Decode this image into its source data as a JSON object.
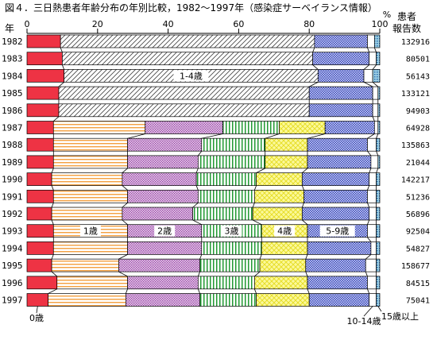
{
  "chart_data": {
    "type": "bar",
    "stacked": true,
    "orientation": "horizontal",
    "percent": true,
    "title": "図４．三日熱患者年齢分布の年別比較，1982～1997年（感染症サーベイランス情報）",
    "y_axis_label": "年",
    "x_axis_unit": "%",
    "right_header_line1": "患者",
    "right_header_line2": "報告数",
    "xlim": [
      0,
      100
    ],
    "x_ticks": [
      "0",
      "20",
      "40",
      "60",
      "80",
      "100"
    ],
    "categories": [
      "1982",
      "1983",
      "1984",
      "1985",
      "1986",
      "1987",
      "1988",
      "1989",
      "1990",
      "1991",
      "1992",
      "1993",
      "1994",
      "1995",
      "1996",
      "1997"
    ],
    "report_counts": [
      "132916",
      "80501",
      "56143",
      "133121",
      "94903",
      "64928",
      "135863",
      "21044",
      "142217",
      "51236",
      "56896",
      "92504",
      "54827",
      "158677",
      "84515",
      "75041"
    ],
    "series": [
      {
        "name": "0歳",
        "color": "#ee3344",
        "values": [
          9.5,
          10,
          10.5,
          9,
          9,
          7.5,
          7.5,
          7.5,
          7,
          7.5,
          7,
          7.5,
          7.5,
          7,
          8.5,
          6
        ]
      },
      {
        "name": "1-4歳",
        "color": "#ffffff",
        "values": [
          72,
          71,
          72,
          71,
          71,
          null,
          null,
          null,
          null,
          null,
          null,
          null,
          null,
          null,
          null,
          null
        ]
      },
      {
        "name": "1歳",
        "color": "#f4b060",
        "values": [
          null,
          null,
          null,
          null,
          null,
          26,
          21,
          21,
          20,
          21,
          20,
          21,
          21,
          19,
          20,
          22
        ]
      },
      {
        "name": "2歳",
        "color": "#cc99cc",
        "values": [
          null,
          null,
          null,
          null,
          null,
          22,
          21,
          20,
          21,
          20,
          20,
          21,
          21,
          23,
          20,
          21
        ]
      },
      {
        "name": "3歳",
        "color": "#33aa44",
        "values": [
          null,
          null,
          null,
          null,
          null,
          16,
          18,
          19,
          17,
          16,
          17,
          17,
          17,
          17,
          16,
          16
        ]
      },
      {
        "name": "4歳",
        "color": "#f7f35a",
        "values": [
          null,
          null,
          null,
          null,
          null,
          13,
          12,
          12,
          13,
          14,
          14,
          13,
          13,
          13,
          15,
          15
        ]
      },
      {
        "name": "5-9歳",
        "color": "#4455cc",
        "values": [
          15,
          16,
          13,
          18,
          18,
          14,
          17,
          18,
          19,
          18,
          19,
          17,
          18,
          17,
          17,
          17
        ]
      },
      {
        "name": "10-14歳",
        "color": "#ffffff",
        "values": [
          2,
          2,
          2.5,
          1.5,
          1.5,
          1,
          2.5,
          2,
          2,
          2.5,
          2,
          2.5,
          1.5,
          3,
          2.5,
          2
        ]
      },
      {
        "name": "15歳以上",
        "color": "#3399bb",
        "values": [
          1.5,
          1,
          2,
          0.5,
          0.5,
          0.5,
          1,
          0.5,
          1,
          1,
          1,
          1,
          1,
          1,
          1,
          1
        ]
      }
    ],
    "annotations": [
      {
        "text": "1-4歳",
        "series": "1-4歳",
        "row": "1984"
      },
      {
        "text": "1歳",
        "series": "1歳",
        "row": "1993"
      },
      {
        "text": "2歳",
        "series": "2歳",
        "row": "1993"
      },
      {
        "text": "3歳",
        "series": "3歳",
        "row": "1993"
      },
      {
        "text": "4歳",
        "series": "4歳",
        "row": "1993"
      },
      {
        "text": "5-9歳",
        "series": "5-9歳",
        "row": "1993"
      }
    ],
    "bottom_labels": [
      {
        "text": "0歳",
        "series": "0歳"
      },
      {
        "text": "10-14歳",
        "series": "10-14歳"
      },
      {
        "text": "15歳以上",
        "series": "15歳以上"
      }
    ]
  }
}
